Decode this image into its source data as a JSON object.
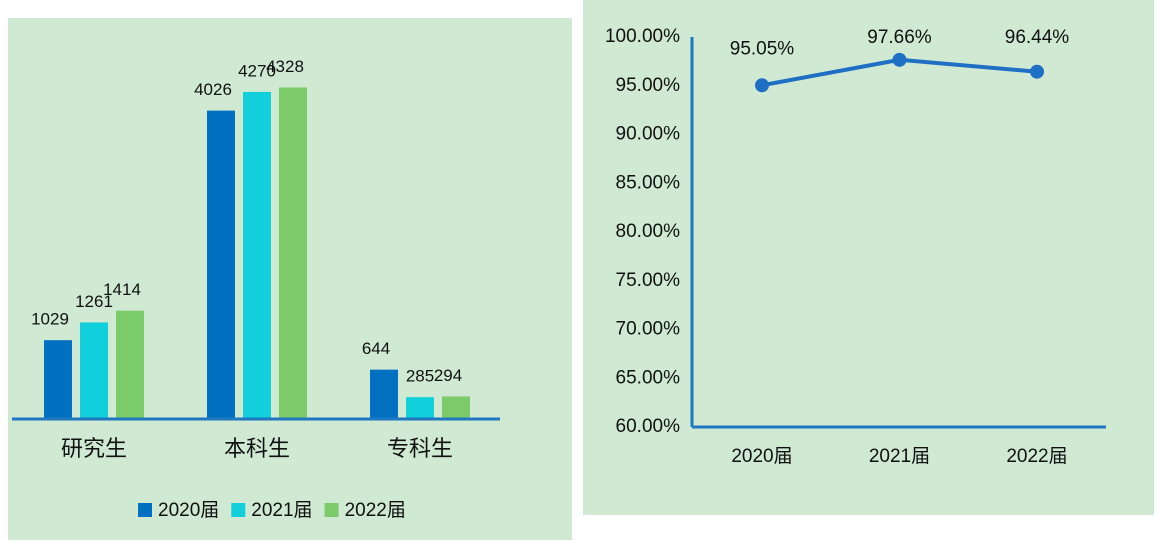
{
  "chart_data": [
    {
      "type": "bar",
      "categories": [
        "研究生",
        "本科生",
        "专科生"
      ],
      "series": [
        {
          "name": "2020届",
          "color": "#0070c0",
          "values": [
            1029,
            4026,
            644
          ]
        },
        {
          "name": "2021届",
          "color": "#12cfdc",
          "values": [
            1261,
            4270,
            285
          ]
        },
        {
          "name": "2022届",
          "color": "#7ccb6a",
          "values": [
            1414,
            4328,
            294
          ]
        }
      ],
      "ylim": [
        0,
        5000
      ],
      "legend": "bottom"
    },
    {
      "type": "line",
      "categories": [
        "2020届",
        "2021届",
        "2022届"
      ],
      "values": [
        95.05,
        97.66,
        96.44
      ],
      "value_labels": [
        "95.05%",
        "97.66%",
        "96.44%"
      ],
      "color": "#1f6fc5",
      "ylim": [
        60,
        100
      ],
      "yticks": [
        {
          "value": 60,
          "label": "60.00%"
        },
        {
          "value": 65,
          "label": "65.00%"
        },
        {
          "value": 70,
          "label": "70.00%"
        },
        {
          "value": 75,
          "label": "75.00%"
        },
        {
          "value": 80,
          "label": "80.00%"
        },
        {
          "value": 85,
          "label": "85.00%"
        },
        {
          "value": 90,
          "label": "90.00%"
        },
        {
          "value": 95,
          "label": "95.00%"
        },
        {
          "value": 100,
          "label": "100.00%"
        }
      ]
    }
  ]
}
